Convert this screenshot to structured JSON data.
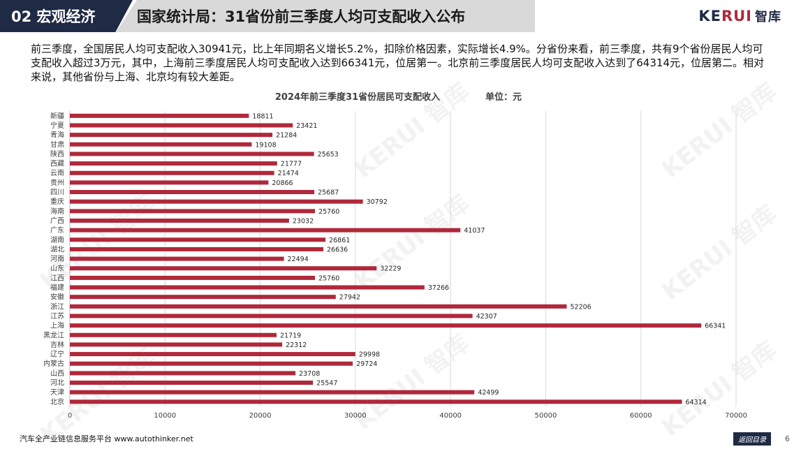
{
  "header": {
    "section": "02 宏观经济",
    "title": "国家统计局：31省份前三季度人均可支配收入公布"
  },
  "logo": {
    "part1": "KE",
    "part2": "RUI",
    "part3": "智库"
  },
  "intro": "前三季度，全国居民人均可支配收入30941元，比上年同期名义增长5.2%，扣除价格因素，实际增长4.9%。分省份来看，前三季度，共有9个省份居民人均可支配收入超过3万元，其中，上海前三季度居民人均可支配收入达到66341元，位居第一。北京前三季度居民人均可支配收入达到了64314元，位居第二。相对来说，其他省份与上海、北京均有较大差距。",
  "watermark": "KERUI 智库",
  "footer": {
    "source": "汽车全产业链信息服务平台 www.autothinker.net",
    "button": "返回目录",
    "page": "6"
  },
  "colors": {
    "bar": "#b0283b",
    "header_dark": "#1f2a44",
    "grid": "#d9d9d9"
  },
  "chart_data": {
    "type": "bar",
    "orientation": "horizontal",
    "title": "2024年前三季度31省份居民可支配收入",
    "unit": "单位：元",
    "categories": [
      "新疆",
      "宁夏",
      "青海",
      "甘肃",
      "陕西",
      "西藏",
      "云南",
      "贵州",
      "四川",
      "重庆",
      "海南",
      "广西",
      "广东",
      "湖南",
      "湖北",
      "河南",
      "山东",
      "江西",
      "福建",
      "安徽",
      "浙江",
      "江苏",
      "上海",
      "黑龙江",
      "吉林",
      "辽宁",
      "内蒙古",
      "山西",
      "河北",
      "天津",
      "北京"
    ],
    "values": [
      18811,
      23421,
      21284,
      19108,
      25653,
      21777,
      21474,
      20866,
      25687,
      30792,
      25760,
      23032,
      41037,
      26861,
      26636,
      22494,
      32229,
      25760,
      37266,
      27942,
      52206,
      42307,
      66341,
      21719,
      22312,
      29998,
      29724,
      23708,
      25547,
      42499,
      64314
    ],
    "value_labels": [
      "18811",
      "23421",
      "21284",
      "19108",
      "25653",
      "21777",
      "21474",
      "20866",
      "25687",
      "30792",
      "25760",
      "23032",
      "41037",
      "26861",
      "26636",
      "22494",
      "32229",
      "25760",
      "37266",
      "27942",
      "52206",
      "42307",
      "66341",
      "21719",
      "22312",
      "29998",
      "29724",
      "23708",
      "25547",
      "42499",
      "64314"
    ],
    "xlim": [
      0,
      70000
    ],
    "xticks": [
      "0",
      "10000",
      "20000",
      "30000",
      "40000",
      "50000",
      "60000",
      "70000"
    ],
    "grid": true,
    "legend": "none"
  }
}
